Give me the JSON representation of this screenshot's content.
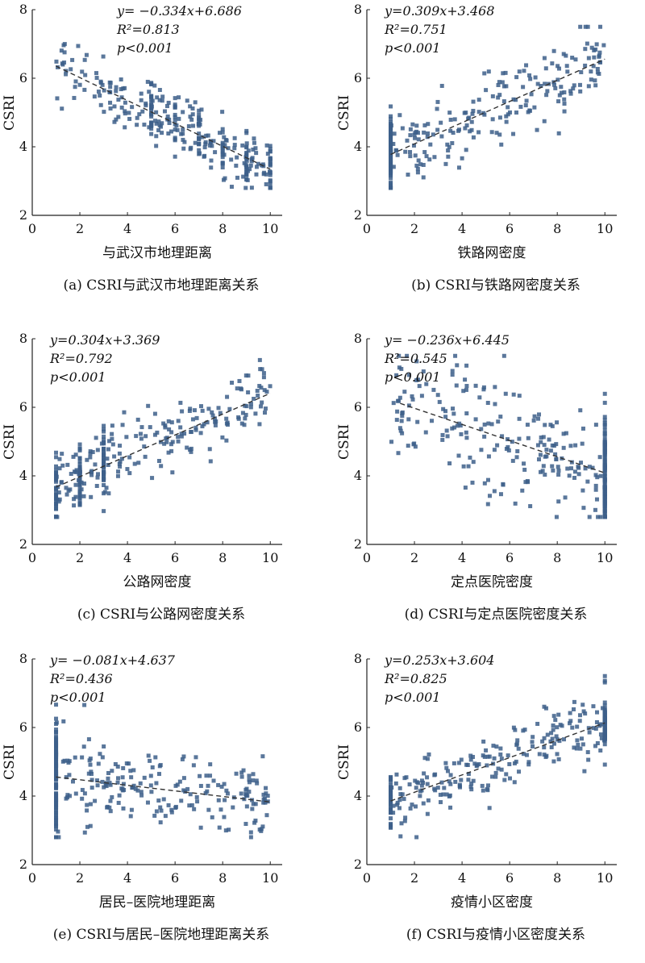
{
  "chart_data": [
    {
      "type": "scatter",
      "panel": "a",
      "caption": "(a) CSRI与武汉市地理距离关系",
      "xlabel": "与武汉市地理距离",
      "ylabel": "CSRI",
      "xlim": [
        0,
        10.5
      ],
      "ylim": [
        2,
        8
      ],
      "xticks": [
        "0",
        "2",
        "4",
        "6",
        "8",
        "10"
      ],
      "yticks": [
        "2",
        "4",
        "6",
        "8"
      ],
      "equation": "y= −0.334x+6.686",
      "r2": "R²=0.813",
      "p": "p<0.001",
      "slope": -0.334,
      "intercept": 6.686,
      "fit_x": [
        1,
        10
      ],
      "x_range": [
        1,
        10
      ],
      "point_spread": 0.4,
      "x_stacks": [
        5,
        6,
        7,
        8,
        9,
        10
      ],
      "color": "#3d5f8a"
    },
    {
      "type": "scatter",
      "panel": "b",
      "caption": "(b) CSRI与铁路网密度关系",
      "xlabel": "铁路网密度",
      "ylabel": "CSRI",
      "xlim": [
        0,
        10.5
      ],
      "ylim": [
        2,
        8
      ],
      "xticks": [
        "0",
        "2",
        "4",
        "6",
        "8",
        "10"
      ],
      "yticks": [
        "2",
        "4",
        "6",
        "8"
      ],
      "equation": "y=0.309x+3.468",
      "r2": "R²=0.751",
      "p": "p<0.001",
      "slope": 0.309,
      "intercept": 3.468,
      "fit_x": [
        1,
        10
      ],
      "x_range": [
        1,
        10
      ],
      "point_spread": 0.55,
      "x_stacks": [
        1
      ],
      "color": "#3d5f8a"
    },
    {
      "type": "scatter",
      "panel": "c",
      "caption": "(c) CSRI与公路网密度关系",
      "xlabel": "公路网密度",
      "ylabel": "CSRI",
      "xlim": [
        0,
        10.5
      ],
      "ylim": [
        2,
        8
      ],
      "xticks": [
        "0",
        "2",
        "4",
        "6",
        "8",
        "10"
      ],
      "yticks": [
        "2",
        "4",
        "6",
        "8"
      ],
      "equation": "y=0.304x+3.369",
      "r2": "R²=0.792",
      "p": "p<0.001",
      "slope": 0.304,
      "intercept": 3.369,
      "fit_x": [
        1,
        10
      ],
      "x_range": [
        1,
        10
      ],
      "point_spread": 0.5,
      "x_stacks": [
        1,
        2,
        3
      ],
      "color": "#3d5f8a"
    },
    {
      "type": "scatter",
      "panel": "d",
      "caption": "(d) CSRI与定点医院密度关系",
      "xlabel": "定点医院密度",
      "ylabel": "CSRI",
      "xlim": [
        0,
        10.5
      ],
      "ylim": [
        2,
        8
      ],
      "xticks": [
        "0",
        "2",
        "4",
        "6",
        "8",
        "10"
      ],
      "yticks": [
        "2",
        "4",
        "6",
        "8"
      ],
      "equation": "y= −0.236x+6.445",
      "r2": "R²=0.545",
      "p": "p<0.001",
      "slope": -0.236,
      "intercept": 6.445,
      "fit_x": [
        1.4,
        10
      ],
      "x_range": [
        1,
        10
      ],
      "point_spread": 0.85,
      "x_stacks": [
        10
      ],
      "color": "#3d5f8a"
    },
    {
      "type": "scatter",
      "panel": "e",
      "caption": "(e) CSRI与居民–医院地理距离关系",
      "xlabel": "居民–医院地理距离",
      "ylabel": "CSRI",
      "xlim": [
        0,
        10.5
      ],
      "ylim": [
        2,
        8
      ],
      "xticks": [
        "0",
        "2",
        "4",
        "6",
        "8",
        "10"
      ],
      "yticks": [
        "2",
        "4",
        "6",
        "8"
      ],
      "equation": "y= −0.081x+4.637",
      "r2": "R²=0.436",
      "p": "p<0.001",
      "slope": -0.081,
      "intercept": 4.637,
      "fit_x": [
        1,
        10
      ],
      "x_range": [
        1,
        10
      ],
      "point_spread": 0.5,
      "x_stacks": [
        1
      ],
      "color": "#3d5f8a"
    },
    {
      "type": "scatter",
      "panel": "f",
      "caption": "(f) CSRI与疫情小区密度关系",
      "xlabel": "疫情小区密度",
      "ylabel": "CSRI",
      "xlim": [
        0,
        10.5
      ],
      "ylim": [
        2,
        8
      ],
      "xticks": [
        "0",
        "2",
        "4",
        "6",
        "8",
        "10"
      ],
      "yticks": [
        "2",
        "4",
        "6",
        "8"
      ],
      "equation": "y=0.253x+3.604",
      "r2": "R²=0.825",
      "p": "p<0.001",
      "slope": 0.253,
      "intercept": 3.604,
      "fit_x": [
        1,
        10
      ],
      "x_range": [
        1,
        10
      ],
      "point_spread": 0.45,
      "x_stacks": [
        1,
        10
      ],
      "color": "#3d5f8a"
    }
  ]
}
